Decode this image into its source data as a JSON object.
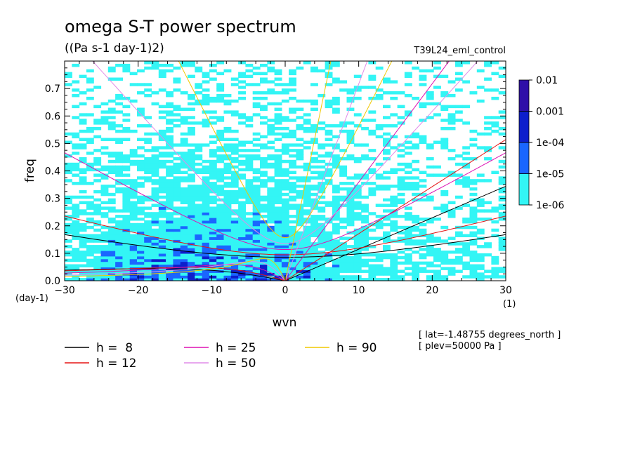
{
  "chart_data": {
    "type": "heatmap",
    "title": "omega S-T power spectrum",
    "subtitle": "((Pa s-1 day-1)2)",
    "experiment": "T39L24_eml_control",
    "xlabel": "wvn",
    "ylabel": "freq",
    "x_unit": "(1)",
    "y_unit": "(day-1)",
    "xlim": [
      -30,
      30
    ],
    "ylim": [
      0,
      0.8
    ],
    "x_ticks": [
      -30,
      -20,
      -10,
      0,
      10,
      20,
      30
    ],
    "y_ticks": [
      0.0,
      0.1,
      0.2,
      0.3,
      0.4,
      0.5,
      0.6,
      0.7
    ],
    "colorbar": {
      "labels": [
        "1e-06",
        "1e-05",
        "1e-04",
        "0.001",
        "0.01"
      ],
      "colors": [
        "#33f5f5",
        "#1a66ff",
        "#0d1fcc",
        "#2e10a8"
      ]
    },
    "dispersion_curves": [
      {
        "label": "h =  8",
        "h": 8,
        "color": "#000000"
      },
      {
        "label": "h = 12",
        "h": 12,
        "color": "#e51414"
      },
      {
        "label": "h = 25",
        "h": 25,
        "color": "#dd14b4"
      },
      {
        "label": "h = 50",
        "h": 50,
        "color": "#e08ce8"
      },
      {
        "label": "h = 90",
        "h": 90,
        "color": "#f0c800"
      }
    ],
    "annotations": [
      "[ lat=-1.48755 degrees_north ]",
      "[ plev=50000 Pa ]"
    ]
  }
}
